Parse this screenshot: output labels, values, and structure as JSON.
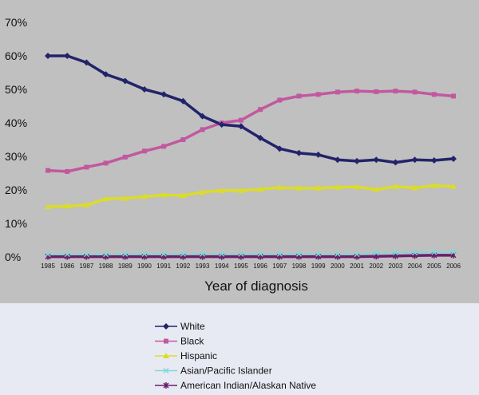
{
  "chart_data": {
    "type": "line",
    "title": "",
    "xlabel": "Year of diagnosis",
    "ylabel": "",
    "x": [
      "1985",
      "1986",
      "1987",
      "1988",
      "1989",
      "1990",
      "1991",
      "1992",
      "1993",
      "1994",
      "1995",
      "1996",
      "1997",
      "1998",
      "1999",
      "2000",
      "2001",
      "2002",
      "2003",
      "2004",
      "2005",
      "2006"
    ],
    "ylim": [
      0,
      70
    ],
    "yticks": [
      "0%",
      "10%",
      "20%",
      "30%",
      "40%",
      "50%",
      "60%",
      "70%"
    ],
    "grid": false,
    "legend_position": "bottom",
    "plot_background": "#c0c0c0",
    "legend_background": "#e8eaf3",
    "series": [
      {
        "name": "White",
        "color": "#23236b",
        "marker": "diamond",
        "values": [
          60,
          60,
          58,
          54.5,
          52.5,
          50,
          48.5,
          46.5,
          42,
          39.5,
          39,
          35.5,
          32.3,
          31,
          30.5,
          29,
          28.6,
          29,
          28.2,
          29,
          28.8,
          29.3
        ]
      },
      {
        "name": "Black",
        "color": "#c2589f",
        "marker": "square",
        "values": [
          25.8,
          25.5,
          26.8,
          28,
          29.8,
          31.6,
          33,
          35,
          38,
          40,
          40.8,
          44,
          46.8,
          48,
          48.5,
          49.2,
          49.5,
          49.3,
          49.5,
          49.2,
          48.5,
          48
        ]
      },
      {
        "name": "Hispanic",
        "color": "#dcdc28",
        "marker": "triangle",
        "values": [
          15,
          15.2,
          15.5,
          17.3,
          17.5,
          18,
          18.5,
          18.3,
          19.3,
          19.8,
          19.8,
          20.2,
          20.7,
          20.5,
          20.5,
          20.8,
          20.9,
          20.1,
          21,
          20.6,
          21.3,
          21
        ]
      },
      {
        "name": "Asian/Pacific Islander",
        "color": "#7fd8d8",
        "marker": "x",
        "values": [
          0.8,
          0.8,
          0.8,
          0.8,
          0.9,
          0.9,
          0.9,
          0.9,
          0.9,
          0.9,
          0.9,
          0.9,
          0.9,
          0.9,
          0.9,
          0.9,
          0.8,
          1.2,
          1.3,
          1.3,
          1.4,
          1.5
        ]
      },
      {
        "name": "American Indian/Alaskan Native",
        "color": "#6a1f6a",
        "marker": "star",
        "values": [
          0.1,
          0.1,
          0.1,
          0.1,
          0.1,
          0.1,
          0.1,
          0.1,
          0.1,
          0.1,
          0.1,
          0.1,
          0.1,
          0.1,
          0.1,
          0.1,
          0.1,
          0.2,
          0.3,
          0.4,
          0.5,
          0.5
        ]
      }
    ]
  }
}
